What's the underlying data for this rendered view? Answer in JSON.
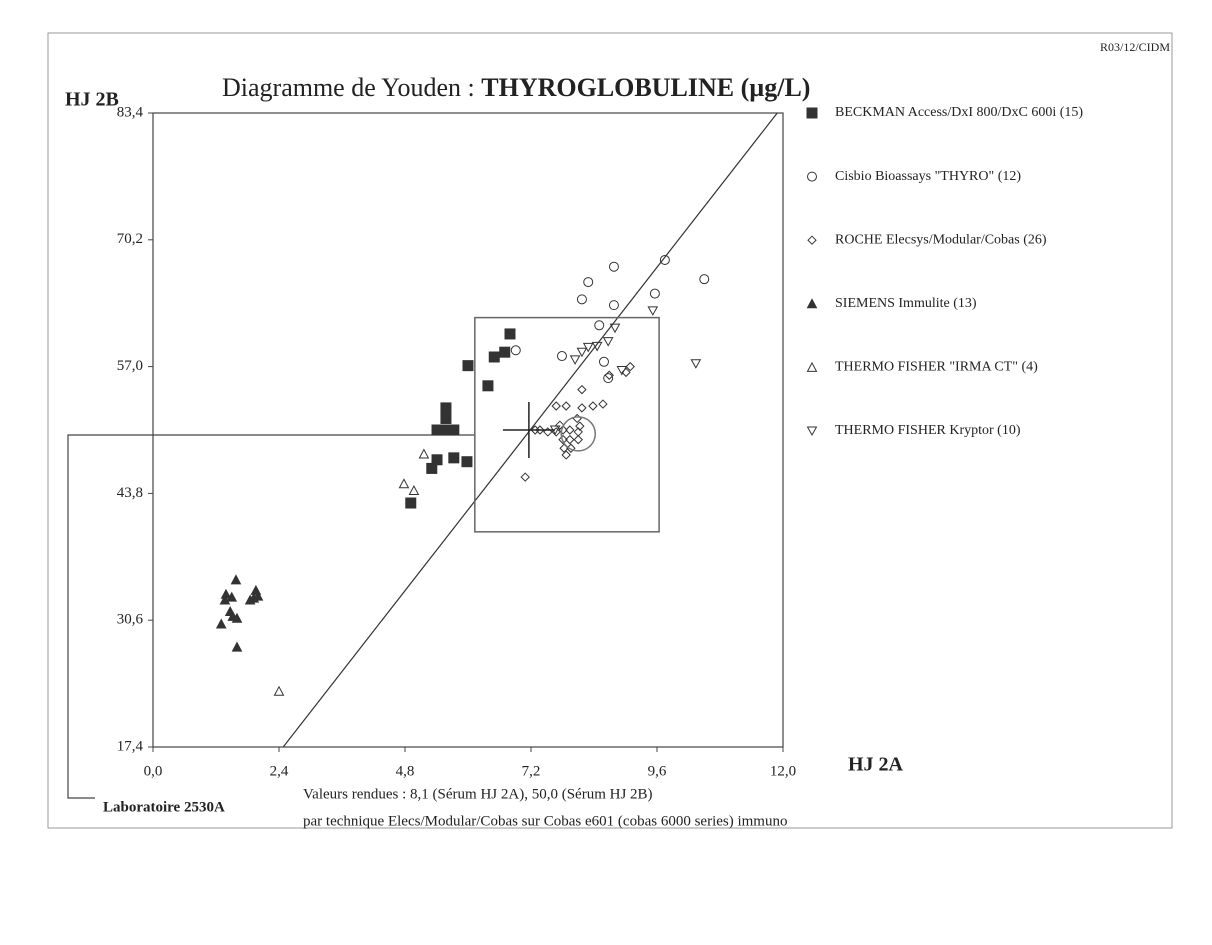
{
  "chart_data": {
    "type": "scatter",
    "code": "R03/12/CIDM",
    "title": "Diagramme de Youden : ",
    "title_bold": "THYROGLOBULINE (µg/L)",
    "x_label": "HJ 2A",
    "y_label": "HJ 2B",
    "lab_label": "Laboratoire 2530A",
    "note_1": "Valeurs rendues : 8,1 (Sérum HJ 2A), 50,0 (Sérum HJ 2B)",
    "note_2": "par technique Elecs/Modular/Cobas sur Cobas e601 (cobas 6000 series) immuno",
    "xlim": [
      0,
      12
    ],
    "ylim": [
      17.4,
      83.4
    ],
    "xticks": [
      {
        "value": 0,
        "label": "0,0"
      },
      {
        "value": 2.4,
        "label": "2,4"
      },
      {
        "value": 4.8,
        "label": "4,8"
      },
      {
        "value": 7.2,
        "label": "7,2"
      },
      {
        "value": 9.6,
        "label": "9,6"
      },
      {
        "value": 12,
        "label": "12,0"
      }
    ],
    "yticks": [
      {
        "value": 17.4,
        "label": "17,4"
      },
      {
        "value": 30.6,
        "label": "30,6"
      },
      {
        "value": 43.8,
        "label": "43,8"
      },
      {
        "value": 57,
        "label": "57,0"
      },
      {
        "value": 70.2,
        "label": "70,2"
      },
      {
        "value": 83.4,
        "label": "83,4"
      }
    ],
    "color": "#333333",
    "reference_line": {
      "x": [
        2.48,
        11.89
      ],
      "y": [
        17.4,
        83.4
      ]
    },
    "box": {
      "x": [
        6.13,
        9.64
      ],
      "y": [
        39.8,
        62.1
      ]
    },
    "target": {
      "x": 7.16,
      "y": 50.4
    },
    "lab_point": {
      "x": 8.1,
      "y": 50.0
    },
    "series": [
      {
        "name": "BECKMAN Access/DxI 800/DxC 600i (15)",
        "marker": "square-filled",
        "x": [
          6.8,
          6.7,
          6.5,
          6.0,
          6.38,
          5.58,
          5.58,
          5.41,
          5.6,
          5.73,
          5.41,
          5.73,
          5.31,
          5.98,
          4.91
        ],
        "y": [
          60.4,
          58.5,
          58.0,
          57.1,
          55.0,
          52.7,
          51.6,
          50.4,
          50.4,
          50.4,
          47.3,
          47.5,
          46.4,
          47.1,
          42.8
        ]
      },
      {
        "name": "Cisbio Bioassays \"THYRO\" (12)",
        "marker": "circle-open",
        "x": [
          9.75,
          8.78,
          8.29,
          8.17,
          9.56,
          10.5,
          8.78,
          8.5,
          6.91,
          7.79,
          8.59,
          8.67
        ],
        "y": [
          68.1,
          67.4,
          65.8,
          64.0,
          64.6,
          66.1,
          63.4,
          61.3,
          58.7,
          58.1,
          57.5,
          55.8
        ]
      },
      {
        "name": "ROCHE Elecsys/Modular/Cobas (26)",
        "marker": "diamond-open",
        "x": [
          9.01,
          9.09,
          8.69,
          8.17,
          7.68,
          7.87,
          8.17,
          8.38,
          8.57,
          8.08,
          7.37,
          7.52,
          7.68,
          7.81,
          7.94,
          8.1,
          7.81,
          7.94,
          8.1,
          7.83,
          7.96,
          7.87,
          7.09,
          7.75,
          8.13,
          7.28
        ],
        "y": [
          56.4,
          57.0,
          56.1,
          54.6,
          52.9,
          52.9,
          52.7,
          52.9,
          53.1,
          51.6,
          50.4,
          50.2,
          50.2,
          50.4,
          50.4,
          50.2,
          49.4,
          49.4,
          49.4,
          48.5,
          48.5,
          47.8,
          45.5,
          50.9,
          50.8,
          50.4
        ]
      },
      {
        "name": "SIEMENS Immulite (13)",
        "marker": "triangle-filled",
        "x": [
          1.58,
          1.39,
          1.5,
          1.96,
          2.0,
          1.92,
          1.52,
          1.6,
          1.3,
          1.6,
          1.47,
          1.85,
          1.37
        ],
        "y": [
          34.8,
          33.3,
          33.0,
          33.7,
          33.1,
          32.9,
          31.0,
          30.8,
          30.2,
          27.8,
          31.5,
          32.7,
          32.7
        ]
      },
      {
        "name": "THERMO FISHER \"IRMA CT\" (4)",
        "marker": "triangle-open",
        "x": [
          4.78,
          4.97,
          5.16,
          2.4
        ],
        "y": [
          44.8,
          44.1,
          47.9,
          23.2
        ]
      },
      {
        "name": "THERMO FISHER Kryptor (10)",
        "marker": "triangle-down-open",
        "x": [
          9.52,
          8.8,
          8.67,
          8.29,
          8.46,
          8.04,
          8.17,
          8.93,
          10.34,
          7.66
        ],
        "y": [
          62.8,
          61.0,
          59.6,
          59.0,
          59.1,
          57.7,
          58.5,
          56.6,
          57.3,
          50.4
        ]
      }
    ]
  }
}
